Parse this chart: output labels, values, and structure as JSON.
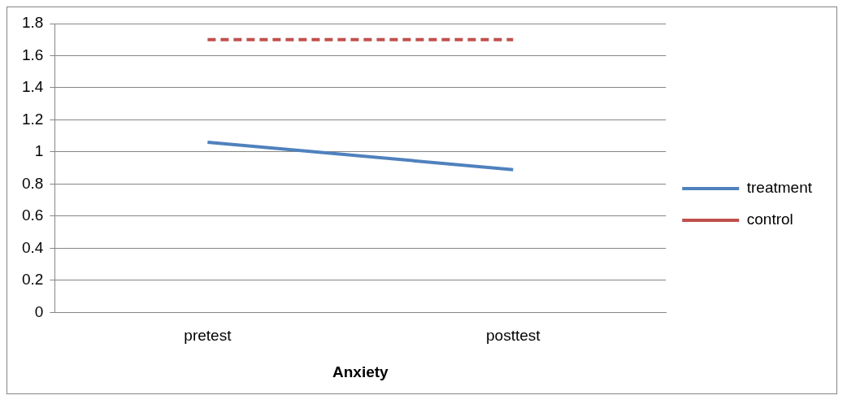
{
  "chart_data": {
    "type": "line",
    "xlabel": "Anxiety",
    "categories": [
      "pretest",
      "posttest"
    ],
    "series": [
      {
        "name": "treatment",
        "color": "#4f81bd",
        "values": [
          1.06,
          0.89
        ],
        "line_style": "solid"
      },
      {
        "name": "control",
        "color": "#c0504d",
        "values": [
          1.7,
          1.7
        ],
        "line_style": "dashed"
      }
    ],
    "ylim": [
      0,
      1.8
    ],
    "yticks": [
      0,
      0.2,
      0.4,
      0.6,
      0.8,
      1,
      1.2,
      1.4,
      1.6,
      1.8
    ],
    "grid": "y",
    "legend": "right"
  }
}
